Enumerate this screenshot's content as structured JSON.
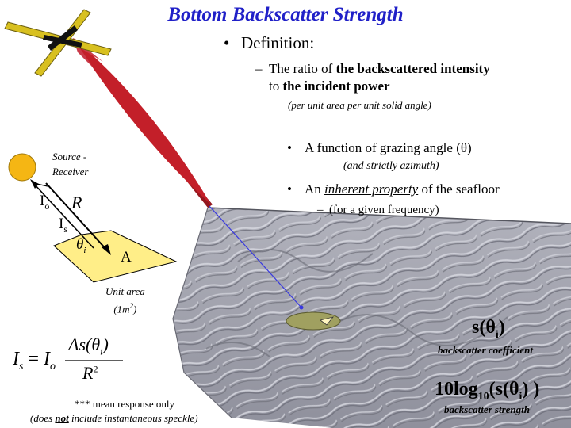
{
  "title": "Bottom Backscatter Strength",
  "definition": {
    "bullet": "•",
    "label": "Definition:"
  },
  "ratio": {
    "dash": "–",
    "t1": "The ratio of ",
    "b1": "the backscattered intensity",
    "t2": "to ",
    "b2": "the incident power"
  },
  "per_unit": "(per unit area per unit solid angle)",
  "function_bullet": {
    "bullet": "•",
    "text": "A function of grazing angle (θ)"
  },
  "azimuth_note": "(and strictly azimuth)",
  "inherent_bullet": {
    "bullet": "•",
    "pre": "An ",
    "em": "inherent property",
    "post": " of the seafloor"
  },
  "frequency_note": {
    "dash": "–",
    "text": "(for a given frequency)"
  },
  "diagram": {
    "source_receiver": [
      "Source -",
      "Receiver"
    ],
    "Io": "I",
    "Io_sub": "o",
    "Is": "I",
    "Is_sub": "s",
    "R": "R",
    "theta": "θ",
    "theta_sub": "i",
    "A": "A",
    "unit_area": [
      "Unit area",
      "(1m",
      "2",
      ")"
    ]
  },
  "equation": {
    "lhs": "I",
    "lhs_sub": "s",
    "eq": "=",
    "io": "I",
    "io_sub": "o",
    "num": "As(θ",
    "num_sub": "i",
    "num_close": ")",
    "den": "R",
    "den_sup": "2"
  },
  "mean_response": "*** mean response only",
  "speckle": {
    "pre": "(does ",
    "not": "not",
    "post": " include instantaneous speckle)"
  },
  "coefficient": {
    "sym": "s(θ",
    "sub": "i",
    "close": ")",
    "label": "backscatter coefficient"
  },
  "strength": {
    "sym": "10log",
    "sub": "10",
    "mid": "(s(θ",
    "sub2": "i",
    "close": ") )",
    "label": "backscatter strength"
  },
  "colors": {
    "title": "#2020c8",
    "beam": "#c0141e",
    "sun": "#f5b614",
    "plane": "#ffee88",
    "seafloor": "#a6a7b2",
    "ping": "#3838e0",
    "transducer": "#d8c020"
  }
}
